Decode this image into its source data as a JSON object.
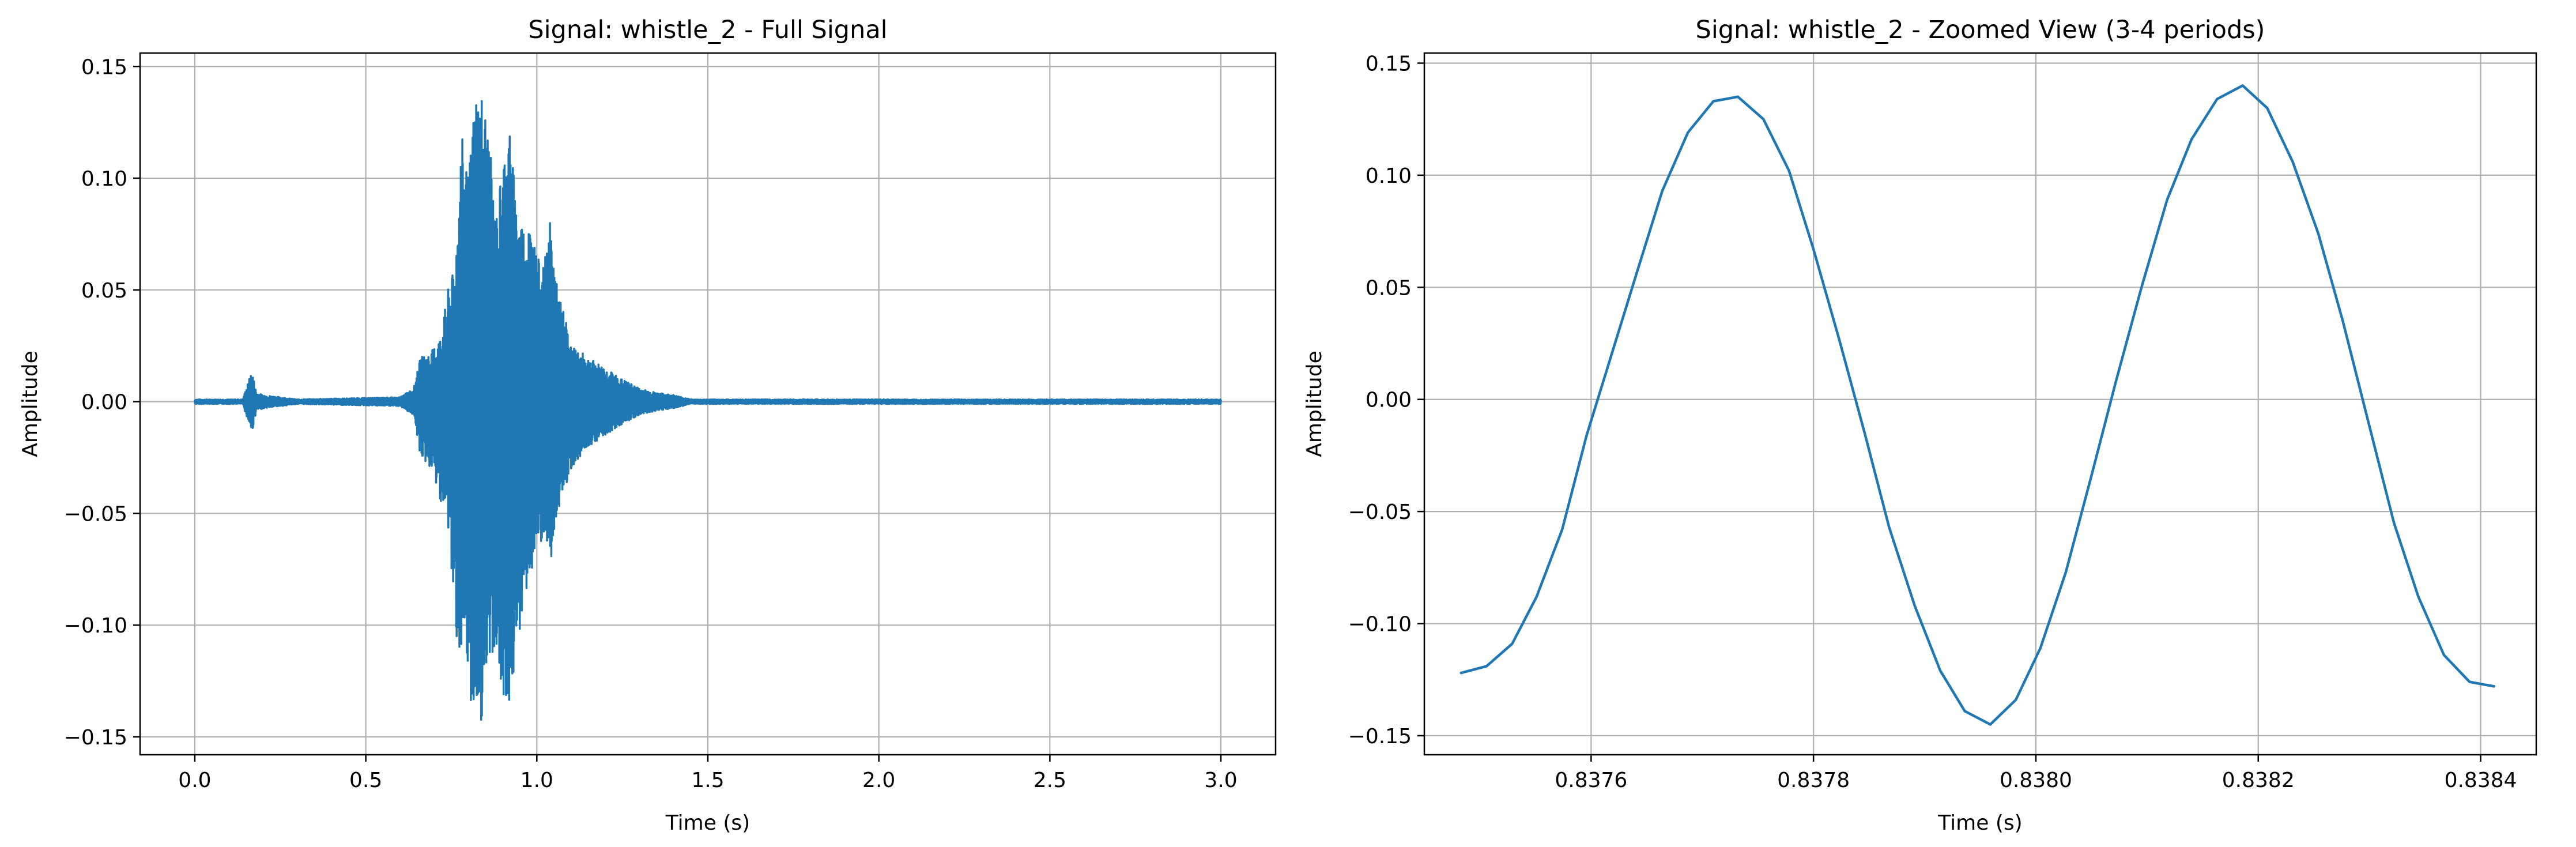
{
  "figure": {
    "background": "#ffffff",
    "line_color": "#1f77b4",
    "grid_color": "#b0b0b0"
  },
  "chart_data": [
    {
      "type": "line",
      "title": "Signal: whistle_2 - Full Signal",
      "xlabel": "Time (s)",
      "ylabel": "Amplitude",
      "xlim": [
        -0.16,
        3.16
      ],
      "ylim": [
        -0.158,
        0.156
      ],
      "grid": true,
      "x_ticks": [
        0.0,
        0.5,
        1.0,
        1.5,
        2.0,
        2.5,
        3.0
      ],
      "x_tick_labels": [
        "0.0",
        "0.5",
        "1.0",
        "1.5",
        "2.0",
        "2.5",
        "3.0"
      ],
      "y_ticks": [
        -0.15,
        -0.1,
        -0.05,
        0.0,
        0.05,
        0.1,
        0.15
      ],
      "y_tick_labels": [
        "−0.15",
        "−0.10",
        "−0.05",
        "0.00",
        "0.05",
        "0.10",
        "0.15"
      ],
      "envelope": {
        "note_x": [
          0.0,
          0.14,
          0.165,
          0.17,
          0.18,
          0.2,
          0.25,
          0.3,
          0.6,
          0.64,
          0.66,
          0.69,
          0.72,
          0.74,
          0.76,
          0.78,
          0.8,
          0.82,
          0.84,
          0.86,
          0.88,
          0.9,
          0.92,
          0.94,
          0.96,
          0.98,
          1.0,
          1.02,
          1.04,
          1.06,
          1.08,
          1.1,
          1.15,
          1.2,
          1.25,
          1.3,
          1.35,
          1.4,
          1.45,
          1.5,
          2.0,
          2.5,
          3.0
        ],
        "upper": [
          0.001,
          0.001,
          0.013,
          0.012,
          0.004,
          0.003,
          0.002,
          0.001,
          0.002,
          0.006,
          0.02,
          0.022,
          0.03,
          0.05,
          0.06,
          0.12,
          0.1,
          0.141,
          0.14,
          0.12,
          0.08,
          0.11,
          0.124,
          0.09,
          0.08,
          0.082,
          0.065,
          0.06,
          0.082,
          0.05,
          0.04,
          0.025,
          0.02,
          0.015,
          0.01,
          0.006,
          0.004,
          0.003,
          0.001,
          0.001,
          0.001,
          0.001,
          0.001
        ],
        "lower": [
          -0.001,
          -0.001,
          -0.013,
          -0.012,
          -0.004,
          -0.003,
          -0.002,
          -0.001,
          -0.002,
          -0.006,
          -0.025,
          -0.03,
          -0.045,
          -0.055,
          -0.1,
          -0.12,
          -0.13,
          -0.145,
          -0.144,
          -0.12,
          -0.11,
          -0.13,
          -0.14,
          -0.115,
          -0.09,
          -0.08,
          -0.07,
          -0.062,
          -0.075,
          -0.05,
          -0.04,
          -0.03,
          -0.02,
          -0.015,
          -0.01,
          -0.006,
          -0.004,
          -0.003,
          -0.001,
          -0.001,
          -0.001,
          -0.001,
          -0.001
        ]
      }
    },
    {
      "type": "line",
      "title": "Signal: whistle_2 - Zoomed View (3-4 periods)",
      "xlabel": "Time (s)",
      "ylabel": "Amplitude",
      "xlim": [
        0.83745,
        0.83845
      ],
      "ylim": [
        -0.1585,
        0.1545
      ],
      "grid": true,
      "x_ticks": [
        0.8376,
        0.8378,
        0.838,
        0.8382,
        0.8384
      ],
      "x_tick_labels": [
        "0.8376",
        "0.8378",
        "0.8380",
        "0.8382",
        "0.8384"
      ],
      "y_ticks": [
        -0.15,
        -0.1,
        -0.05,
        0.0,
        0.05,
        0.1,
        0.15
      ],
      "y_tick_labels": [
        "−0.15",
        "−0.10",
        "−0.05",
        "0.00",
        "0.05",
        "0.10",
        "0.15"
      ],
      "x": [
        0.837483,
        0.837506,
        0.837529,
        0.837551,
        0.837574,
        0.837596,
        0.837619,
        0.837642,
        0.837664,
        0.837687,
        0.83771,
        0.837732,
        0.837755,
        0.837778,
        0.8378,
        0.837823,
        0.837846,
        0.837868,
        0.837891,
        0.837914,
        0.837936,
        0.837959,
        0.837982,
        0.838004,
        0.838027,
        0.83805,
        0.838072,
        0.838095,
        0.838118,
        0.83814,
        0.838163,
        0.838186,
        0.838208,
        0.838231,
        0.838254,
        0.838276,
        0.838299,
        0.838322,
        0.838344,
        0.838367,
        0.83839,
        0.838412
      ],
      "y": [
        -0.122,
        -0.119,
        -0.109,
        -0.088,
        -0.058,
        -0.016,
        0.021,
        0.058,
        0.093,
        0.119,
        0.133,
        0.135,
        0.125,
        0.102,
        0.067,
        0.027,
        -0.015,
        -0.057,
        -0.092,
        -0.121,
        -0.139,
        -0.145,
        -0.134,
        -0.111,
        -0.077,
        -0.034,
        0.008,
        0.05,
        0.089,
        0.116,
        0.134,
        0.14,
        0.13,
        0.106,
        0.074,
        0.035,
        -0.01,
        -0.055,
        -0.088,
        -0.114,
        -0.126,
        -0.128
      ]
    }
  ]
}
